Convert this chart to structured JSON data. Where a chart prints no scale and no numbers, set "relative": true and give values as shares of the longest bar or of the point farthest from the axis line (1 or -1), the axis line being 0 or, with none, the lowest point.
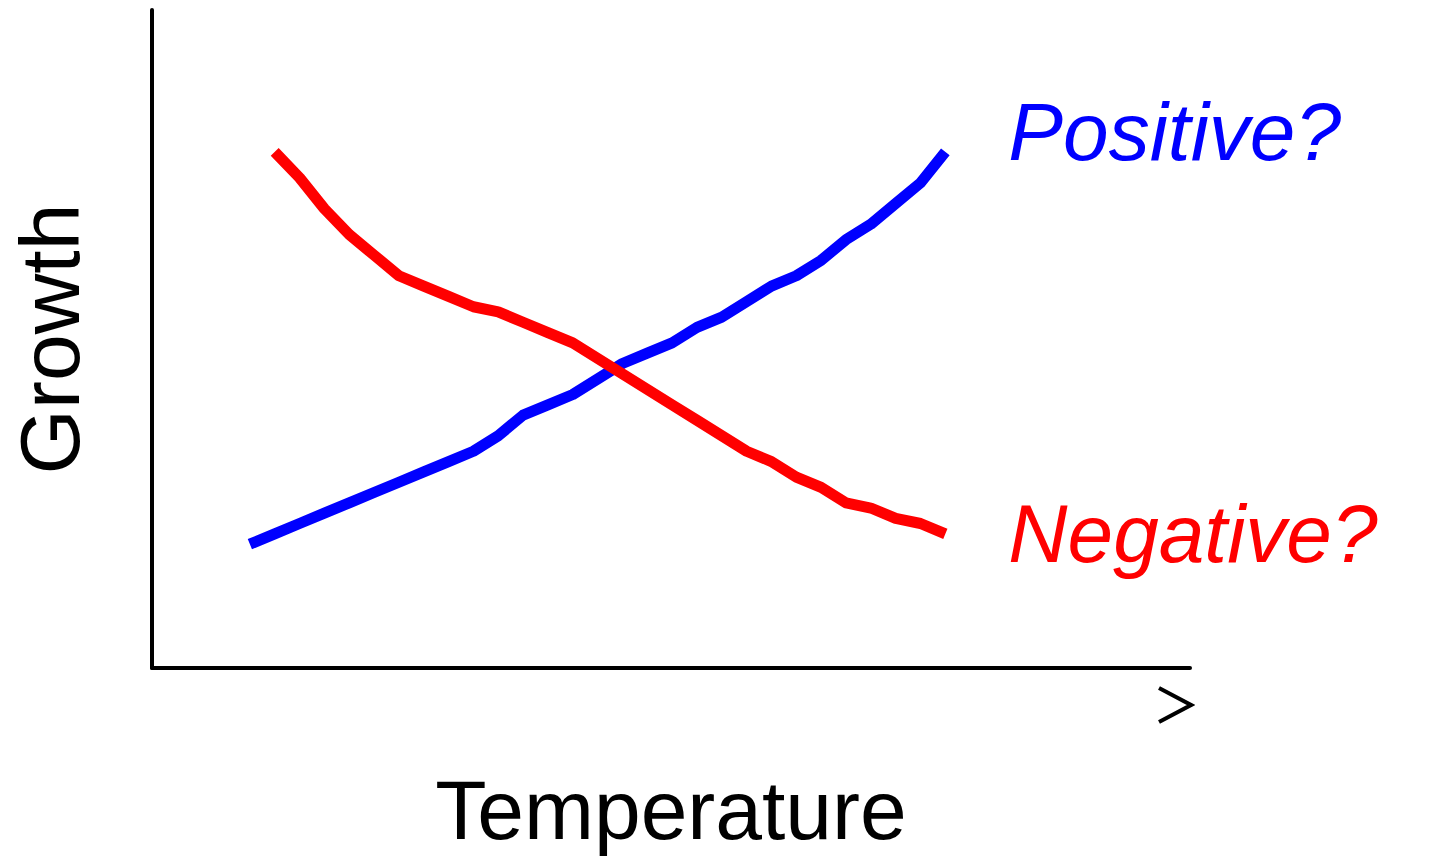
{
  "chart_data": {
    "type": "line",
    "xlabel": "Temperature",
    "ylabel": "Growth",
    "relative": true,
    "grid": false,
    "legend": false,
    "marker": "none",
    "line_style": "solid",
    "categories": [
      null,
      null,
      null,
      null,
      null,
      null,
      null,
      null,
      null,
      null,
      null,
      null,
      null,
      null,
      null,
      null,
      null,
      null,
      null,
      null,
      null,
      null,
      null,
      null,
      null,
      null,
      null,
      null,
      null
    ],
    "series": [
      {
        "name": "Positive?",
        "color": "#0000ff",
        "values": [
          0.24,
          0.26,
          0.28,
          0.3,
          0.32,
          0.34,
          0.36,
          0.38,
          0.4,
          0.42,
          0.45,
          0.49,
          0.51,
          0.53,
          0.56,
          0.59,
          0.61,
          0.63,
          0.66,
          0.68,
          0.71,
          0.74,
          0.76,
          0.79,
          0.83,
          0.86,
          0.9,
          0.94,
          1.0
        ]
      },
      {
        "name": "Negative?",
        "color": "#ff0000",
        "values": [
          null,
          1.0,
          0.95,
          0.89,
          0.84,
          0.8,
          0.76,
          0.74,
          0.72,
          0.7,
          0.69,
          0.67,
          0.65,
          0.63,
          0.6,
          0.57,
          0.54,
          0.51,
          0.48,
          0.45,
          0.42,
          0.4,
          0.37,
          0.35,
          0.32,
          0.31,
          0.29,
          0.28,
          0.26
        ]
      }
    ]
  }
}
